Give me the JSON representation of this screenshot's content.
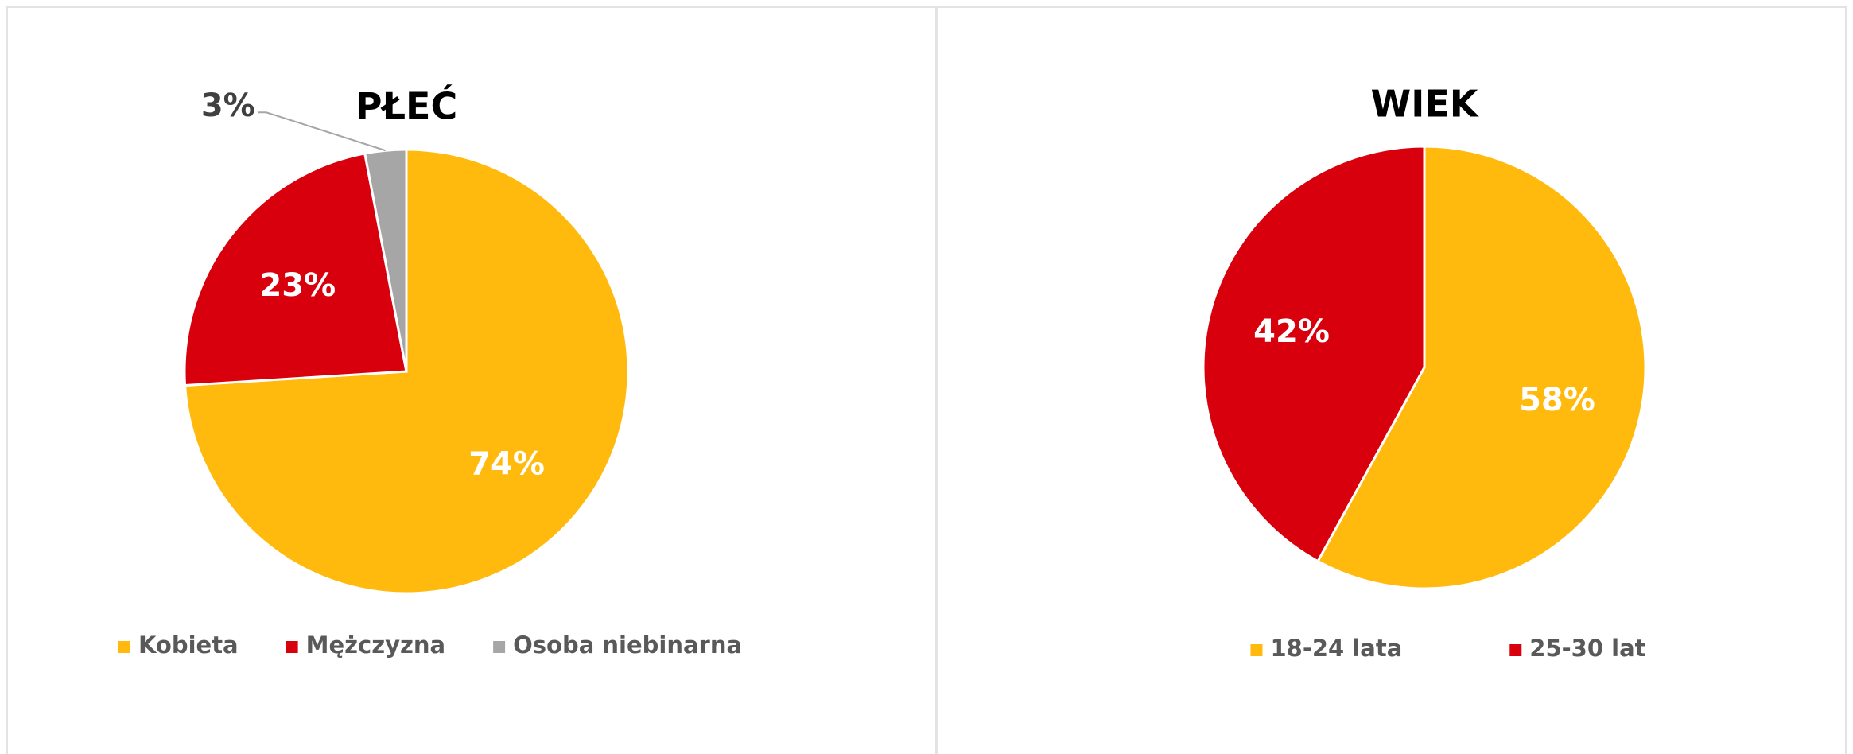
{
  "chart_data": [
    {
      "type": "pie",
      "title": "PŁEĆ",
      "categories": [
        "Kobieta",
        "Mężczyzna",
        "Osoba niebinarna"
      ],
      "values": [
        74,
        23,
        3
      ],
      "value_labels": [
        "74%",
        "23%",
        "3%"
      ],
      "colors": [
        "#FFBA0D",
        "#D9000D",
        "#A6A6A6"
      ],
      "legend": "bottom"
    },
    {
      "type": "pie",
      "title": "WIEK",
      "categories": [
        "18-24 lata",
        "25-30 lat"
      ],
      "values": [
        58,
        42
      ],
      "value_labels": [
        "58%",
        "42%"
      ],
      "colors": [
        "#FFBA0D",
        "#D9000D"
      ],
      "legend": "bottom"
    }
  ]
}
